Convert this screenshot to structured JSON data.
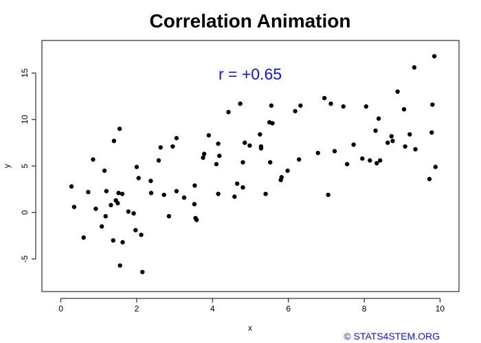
{
  "chart_data": {
    "type": "scatter",
    "title": "Correlation Animation",
    "xlabel": "x",
    "ylabel": "y",
    "xlim": [
      -0.5,
      10.5
    ],
    "ylim": [
      -8.5,
      18.5
    ],
    "xticks": [
      0,
      2,
      4,
      6,
      8,
      10
    ],
    "yticks": [
      -5,
      0,
      5,
      10,
      15
    ],
    "grid": false,
    "annotation": "r = +0.65",
    "copyright": "© STATS4STEM.ORG",
    "colors": {
      "points": "#000000",
      "annotation": "#0a18e6",
      "copyright": "#0a18e6"
    },
    "points": [
      [
        0.28,
        2.8
      ],
      [
        0.35,
        0.6
      ],
      [
        0.6,
        -2.7
      ],
      [
        0.72,
        2.2
      ],
      [
        0.85,
        5.7
      ],
      [
        0.92,
        0.4
      ],
      [
        1.08,
        -1.5
      ],
      [
        1.15,
        4.5
      ],
      [
        1.18,
        -0.4
      ],
      [
        1.2,
        2.3
      ],
      [
        1.32,
        0.8
      ],
      [
        1.38,
        -3.0
      ],
      [
        1.4,
        7.7
      ],
      [
        1.45,
        1.3
      ],
      [
        1.5,
        1.0
      ],
      [
        1.52,
        2.1
      ],
      [
        1.55,
        9.0
      ],
      [
        1.56,
        -5.7
      ],
      [
        1.62,
        2.0
      ],
      [
        1.63,
        -3.2
      ],
      [
        1.78,
        0.1
      ],
      [
        1.92,
        -0.1
      ],
      [
        1.97,
        -1.9
      ],
      [
        2.0,
        4.9
      ],
      [
        2.05,
        3.7
      ],
      [
        2.12,
        -2.4
      ],
      [
        2.15,
        -6.4
      ],
      [
        2.37,
        3.4
      ],
      [
        2.38,
        2.1
      ],
      [
        2.58,
        5.6
      ],
      [
        2.63,
        7.0
      ],
      [
        2.72,
        1.9
      ],
      [
        2.85,
        -0.4
      ],
      [
        2.95,
        7.1
      ],
      [
        3.05,
        8.0
      ],
      [
        3.05,
        2.3
      ],
      [
        3.25,
        1.6
      ],
      [
        3.52,
        0.9
      ],
      [
        3.53,
        2.9
      ],
      [
        3.55,
        -0.6
      ],
      [
        3.58,
        -0.8
      ],
      [
        3.75,
        5.9
      ],
      [
        3.78,
        6.3
      ],
      [
        3.9,
        8.3
      ],
      [
        4.1,
        5.2
      ],
      [
        4.15,
        2.0
      ],
      [
        4.15,
        7.4
      ],
      [
        4.18,
        6.1
      ],
      [
        4.42,
        10.8
      ],
      [
        4.58,
        1.7
      ],
      [
        4.65,
        3.1
      ],
      [
        4.73,
        11.7
      ],
      [
        4.8,
        2.7
      ],
      [
        4.8,
        5.4
      ],
      [
        4.85,
        7.5
      ],
      [
        4.98,
        7.2
      ],
      [
        5.25,
        8.4
      ],
      [
        5.28,
        6.9
      ],
      [
        5.28,
        7.1
      ],
      [
        5.4,
        2.0
      ],
      [
        5.5,
        9.7
      ],
      [
        5.52,
        5.4
      ],
      [
        5.55,
        11.5
      ],
      [
        5.58,
        9.6
      ],
      [
        5.8,
        3.5
      ],
      [
        5.82,
        3.8
      ],
      [
        5.98,
        4.5
      ],
      [
        6.18,
        10.9
      ],
      [
        6.28,
        5.7
      ],
      [
        6.32,
        11.5
      ],
      [
        6.78,
        6.4
      ],
      [
        6.95,
        12.3
      ],
      [
        7.05,
        1.9
      ],
      [
        7.12,
        11.7
      ],
      [
        7.22,
        6.6
      ],
      [
        7.45,
        11.4
      ],
      [
        7.55,
        5.2
      ],
      [
        7.72,
        7.3
      ],
      [
        7.95,
        5.8
      ],
      [
        8.05,
        11.4
      ],
      [
        8.15,
        5.6
      ],
      [
        8.3,
        8.8
      ],
      [
        8.33,
        5.3
      ],
      [
        8.38,
        10.1
      ],
      [
        8.42,
        5.6
      ],
      [
        8.62,
        7.5
      ],
      [
        8.72,
        8.2
      ],
      [
        8.75,
        7.7
      ],
      [
        8.88,
        13.0
      ],
      [
        9.05,
        11.1
      ],
      [
        9.08,
        7.1
      ],
      [
        9.2,
        8.4
      ],
      [
        9.32,
        15.6
      ],
      [
        9.35,
        6.8
      ],
      [
        9.72,
        3.6
      ],
      [
        9.78,
        8.6
      ],
      [
        9.8,
        11.6
      ],
      [
        9.85,
        16.8
      ],
      [
        9.88,
        4.9
      ]
    ]
  }
}
